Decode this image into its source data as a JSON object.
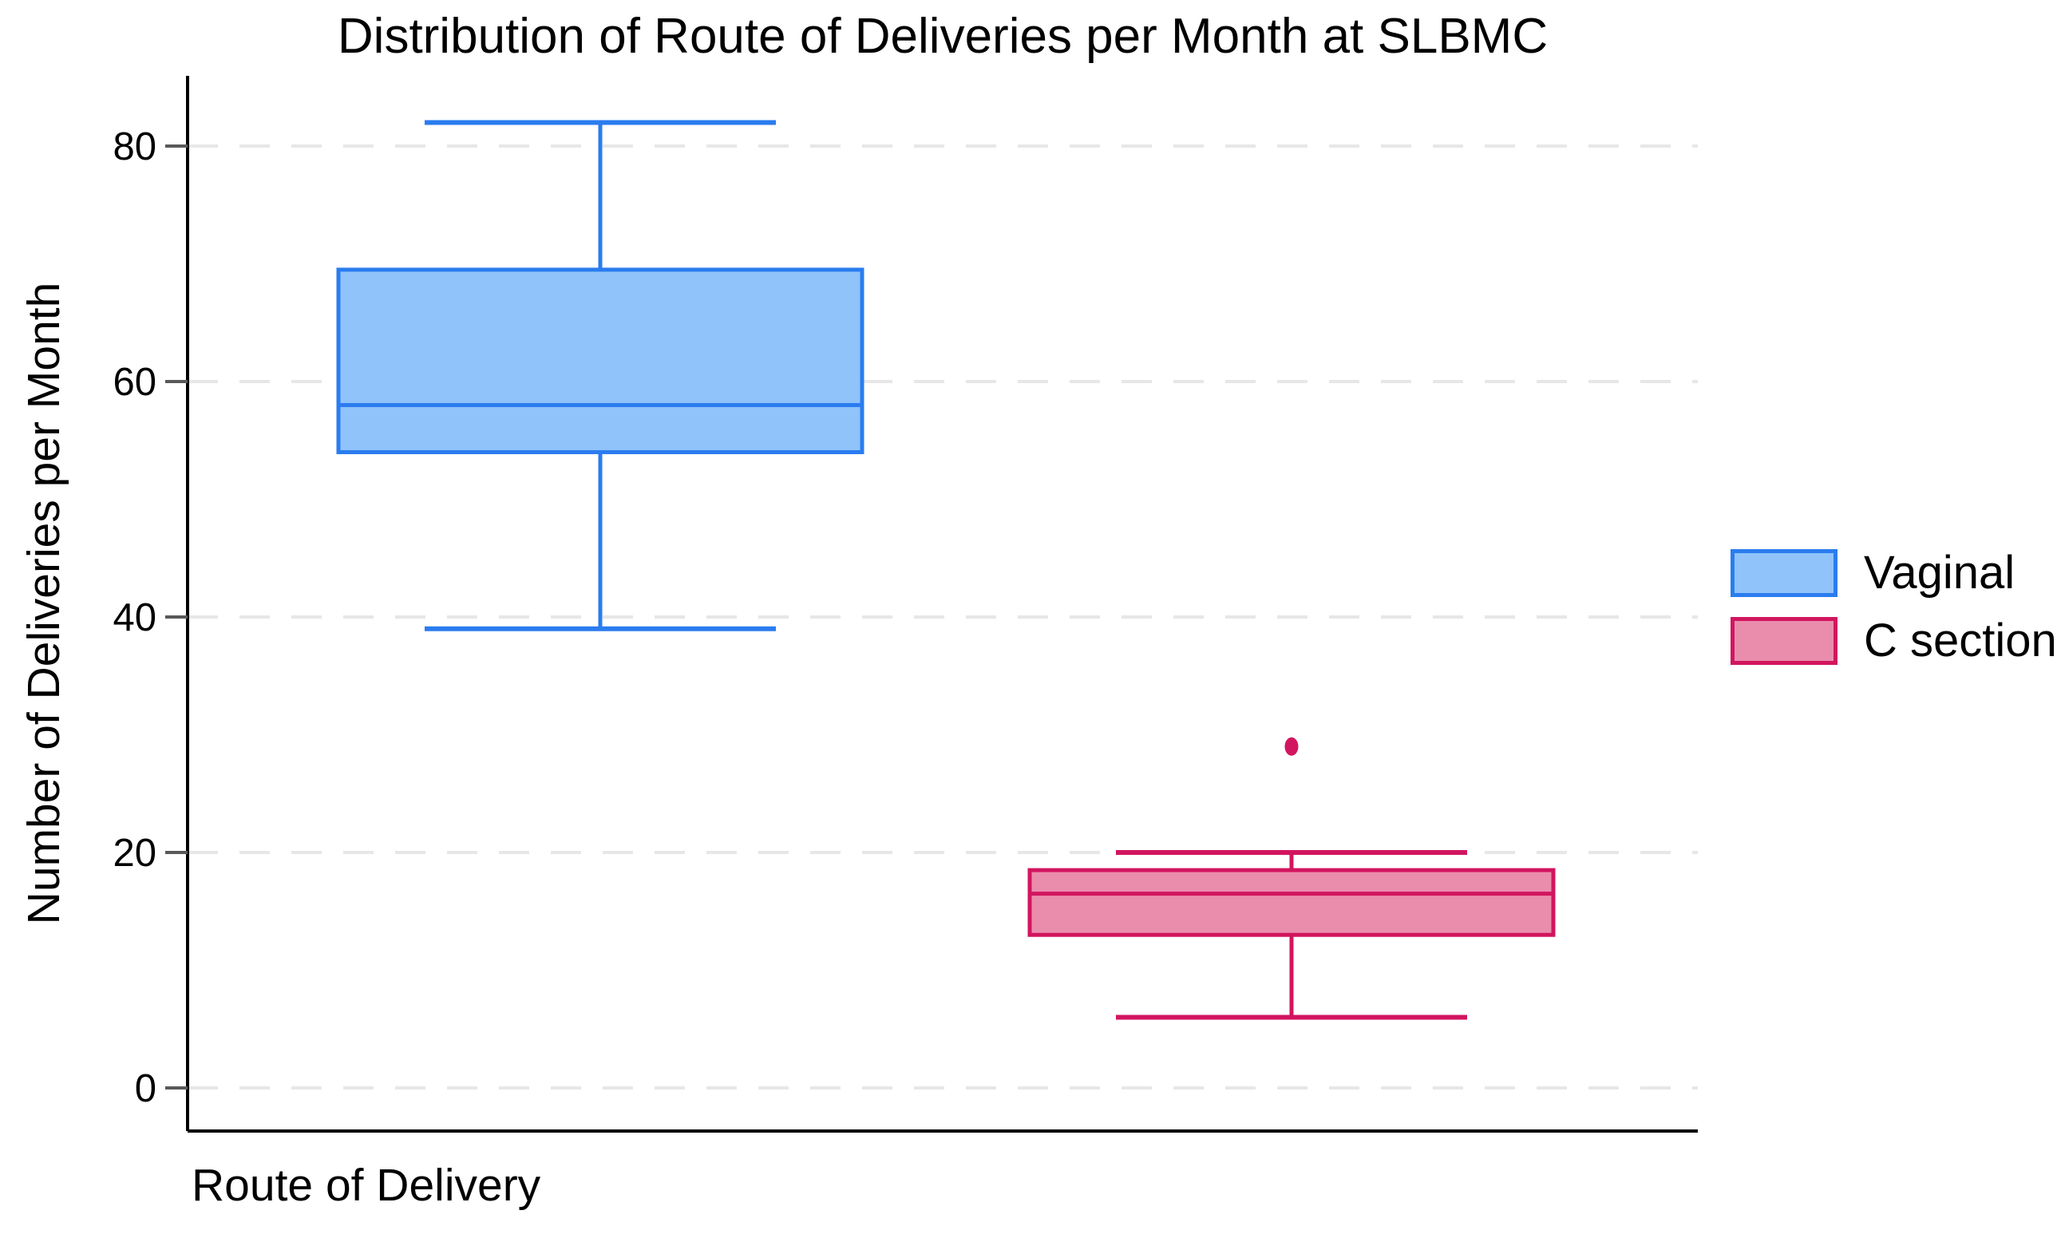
{
  "chart_data": {
    "type": "boxplot",
    "title": "Distribution of Route of Deliveries per Month at SLBMC",
    "xlabel": "Route of Delivery",
    "ylabel": "Number of Deliveries per Month",
    "yticks": [
      0,
      20,
      40,
      60,
      80
    ],
    "ylim": [
      -4,
      86
    ],
    "grid": "horizontal-dashed",
    "legend_position": "right-outside",
    "series": [
      {
        "name": "Vaginal",
        "whisker_low": 39,
        "q1": 54,
        "median": 58,
        "q3": 69.5,
        "whisker_high": 82,
        "outliers": [],
        "fill_color": "#8FC3FA",
        "border_color": "#2B7CEF"
      },
      {
        "name": "C section",
        "whisker_low": 6,
        "q1": 13,
        "median": 16.5,
        "q3": 18.5,
        "whisker_high": 20,
        "outliers": [
          29
        ],
        "fill_color": "#EA8DAD",
        "border_color": "#D2155F"
      }
    ]
  },
  "colors": {
    "background": "#FFFFFF",
    "gridline": "#E7E7E7",
    "axis": "#000000",
    "tick_mark": "#595959",
    "text": "#000000"
  }
}
